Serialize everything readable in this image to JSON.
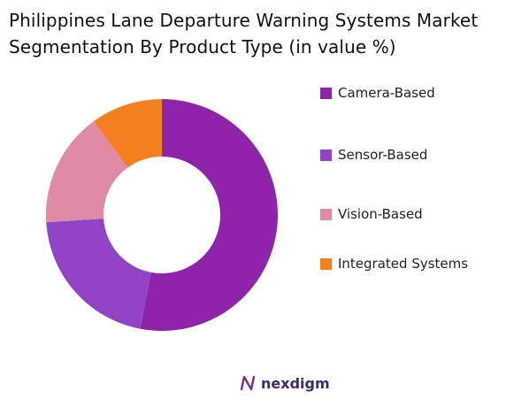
{
  "title": "Philippines Lane Departure Warning Systems Market Segmentation By Product Type (in value %)",
  "chart_data": {
    "type": "pie",
    "donut": true,
    "title": "Philippines Lane Departure Warning Systems Market Segmentation By Product Type (in value %)",
    "legend_position": "right",
    "slices": [
      {
        "label": "Camera-Based",
        "value": 53,
        "color": "#8e24aa"
      },
      {
        "label": "Sensor-Based",
        "value": 21,
        "color": "#8e44c4"
      },
      {
        "label": "Vision-Based",
        "value": 16,
        "color": "#e08ba4"
      },
      {
        "label": "Integrated Systems",
        "value": 10,
        "color": "#f47f20"
      }
    ]
  },
  "brand": {
    "name": "nexdigm",
    "color": "#7b2d8e"
  }
}
